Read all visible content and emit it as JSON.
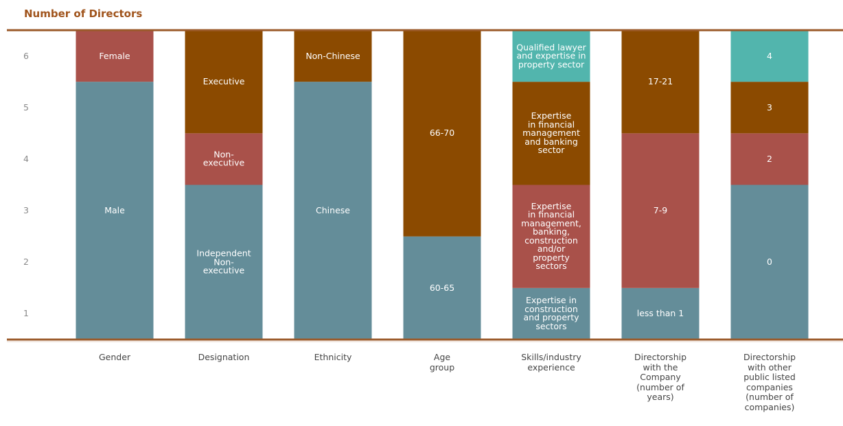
{
  "chart_data": {
    "type": "stacked_bar",
    "title": "Number of Directors",
    "ylim": [
      0,
      6
    ],
    "yticks": [
      1,
      2,
      3,
      4,
      5,
      6
    ],
    "bars": [
      {
        "category": "Gender",
        "segments": [
          {
            "label": "Male",
            "value": 5,
            "color": "#648d99"
          },
          {
            "label": "Female",
            "value": 1,
            "color": "#a9514a"
          }
        ]
      },
      {
        "category": "Designation",
        "segments": [
          {
            "label": "Independent\nNon-\nexecutive",
            "value": 3,
            "color": "#648d99"
          },
          {
            "label": "Non-\nexecutive",
            "value": 1,
            "color": "#a9514a"
          },
          {
            "label": "Executive",
            "value": 2,
            "color": "#8b4a00"
          }
        ]
      },
      {
        "category": "Ethnicity",
        "segments": [
          {
            "label": "Chinese",
            "value": 5,
            "color": "#648d99"
          },
          {
            "label": "Non-Chinese",
            "value": 1,
            "color": "#8b4a00"
          }
        ]
      },
      {
        "category": "Age\ngroup",
        "segments": [
          {
            "label": "60-65",
            "value": 2,
            "color": "#648d99"
          },
          {
            "label": "66-70",
            "value": 4,
            "color": "#8b4a00"
          }
        ]
      },
      {
        "category": "Skills/industry\nexperience",
        "segments": [
          {
            "label": "Expertise in\nconstruction\nand property\nsectors",
            "value": 1,
            "color": "#648d99"
          },
          {
            "label": "Expertise\nin financial\nmanagement,\nbanking,\nconstruction\nand/or\nproperty\nsectors",
            "value": 2,
            "color": "#a9514a"
          },
          {
            "label": "Expertise\nin financial\nmanagement\nand banking\nsector",
            "value": 2,
            "color": "#8b4a00"
          },
          {
            "label": "Qualified lawyer\nand expertise in\nproperty sector",
            "value": 1,
            "color": "#52b5ad"
          }
        ]
      },
      {
        "category": "Directorship\nwith the\nCompany\n(number of\nyears)",
        "segments": [
          {
            "label": "less than 1",
            "value": 1,
            "color": "#648d99"
          },
          {
            "label": "7-9",
            "value": 3,
            "color": "#a9514a"
          },
          {
            "label": "17-21",
            "value": 2,
            "color": "#8b4a00"
          }
        ]
      },
      {
        "category": "Directorship\nwith other\npublic listed\ncompanies\n(number of\ncompanies)",
        "segments": [
          {
            "label": "0",
            "value": 3,
            "color": "#648d99"
          },
          {
            "label": "2",
            "value": 1,
            "color": "#a9514a"
          },
          {
            "label": "3",
            "value": 1,
            "color": "#8b4a00"
          },
          {
            "label": "4",
            "value": 1,
            "color": "#52b5ad"
          }
        ]
      }
    ]
  }
}
